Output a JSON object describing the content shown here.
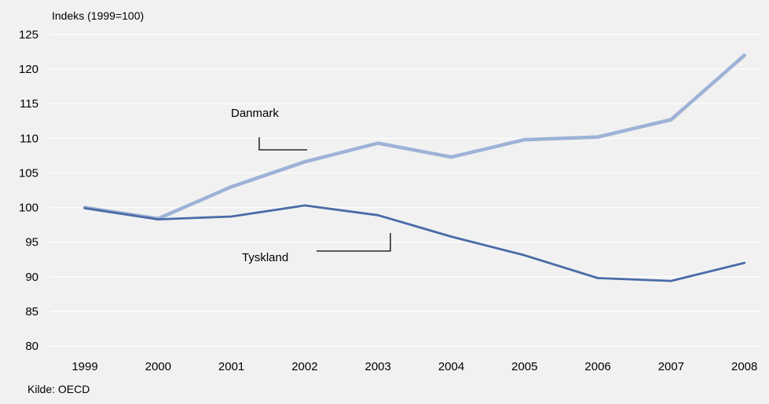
{
  "chart_data": {
    "type": "line",
    "title": "",
    "xlabel": "",
    "ylabel": "Indeks (1999=100)",
    "source": "Kilde: OECD",
    "categories": [
      "1999",
      "2000",
      "2001",
      "2002",
      "2003",
      "2004",
      "2005",
      "2006",
      "2007",
      "2008"
    ],
    "ylim": [
      80,
      125
    ],
    "yticks": [
      "80",
      "85",
      "90",
      "95",
      "100",
      "105",
      "110",
      "115",
      "120",
      "125"
    ],
    "grid": true,
    "legend": "none",
    "series": [
      {
        "name": "Danmark",
        "color": "#9db2d6",
        "values": [
          100,
          98.4,
          103.0,
          106.6,
          109.3,
          107.3,
          109.8,
          110.2,
          112.7,
          122.0
        ]
      },
      {
        "name": "Tyskland",
        "color": "#4a6ba6",
        "values": [
          99.9,
          98.3,
          98.7,
          100.3,
          98.9,
          95.8,
          93.1,
          89.8,
          89.4,
          92.0
        ]
      }
    ]
  },
  "colors": {
    "background": "#f1f1f1",
    "grid": "#ffffff"
  }
}
